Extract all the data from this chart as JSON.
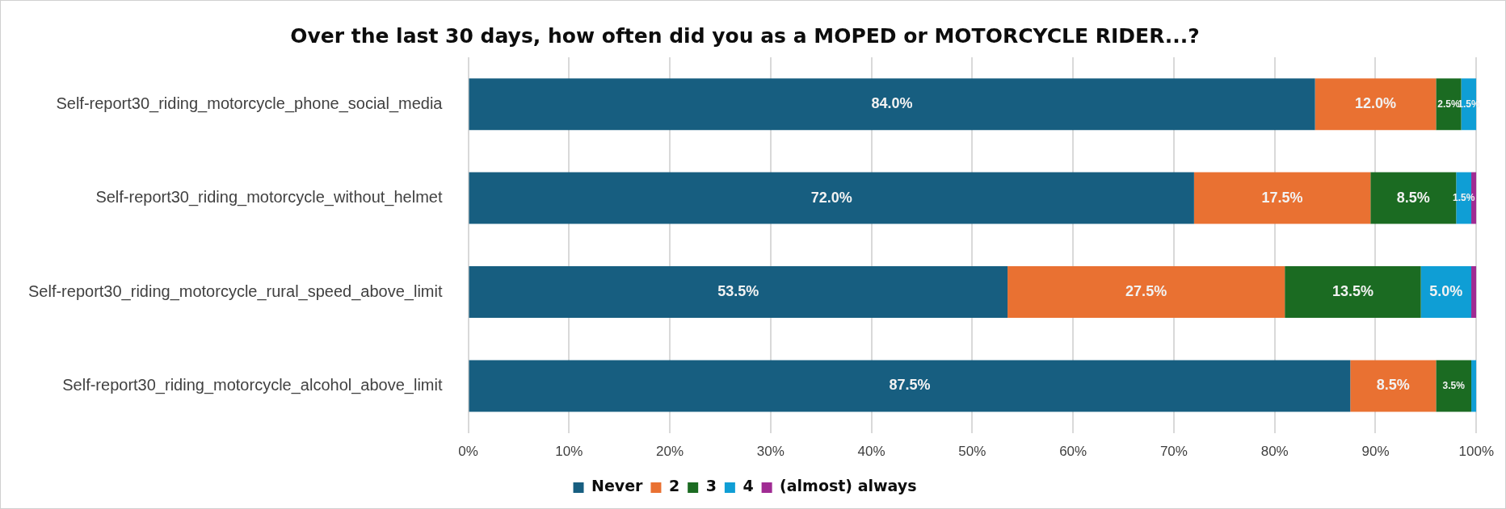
{
  "chart_data": {
    "type": "bar",
    "orientation": "horizontal",
    "stacked": true,
    "title": "Over the last 30 days, how often did you as a MOPED or MOTORCYCLE RIDER...?",
    "categories": [
      "Self-report30_riding_motorcycle_phone_social_media",
      "Self-report30_riding_motorcycle_without_helmet",
      "Self-report30_riding_motorcycle_rural_speed_above_limit",
      "Self-report30_riding_motorcycle_alcohol_above_limit"
    ],
    "series": [
      {
        "name": "Never",
        "color": "#175e80",
        "values": [
          84.0,
          72.0,
          53.5,
          87.5
        ],
        "value_labels": [
          "84.0%",
          "72.0%",
          "53.5%",
          "87.5%"
        ]
      },
      {
        "name": "2",
        "color": "#e97132",
        "values": [
          12.0,
          17.5,
          27.5,
          8.5
        ],
        "value_labels": [
          "12.0%",
          "17.5%",
          "27.5%",
          "8.5%"
        ]
      },
      {
        "name": "3",
        "color": "#1b6b22",
        "values": [
          2.5,
          8.5,
          13.5,
          3.5
        ],
        "value_labels": [
          "2.5%",
          "8.5%",
          "13.5%",
          "3.5%"
        ]
      },
      {
        "name": "4",
        "color": "#0f9ed5",
        "values": [
          1.5,
          1.5,
          5.0,
          0.5
        ],
        "value_labels": [
          "1.5%",
          "1.5%",
          "5.0%",
          null
        ]
      },
      {
        "name": "(almost) always",
        "color": "#a02b93",
        "values": [
          null,
          0.5,
          0.5,
          null
        ],
        "value_labels": [
          null,
          null,
          null,
          null
        ]
      }
    ],
    "xlim": [
      0,
      100
    ],
    "xticks": [
      {
        "value": 0,
        "label": "0%"
      },
      {
        "value": 10,
        "label": "10%"
      },
      {
        "value": 20,
        "label": "20%"
      },
      {
        "value": 30,
        "label": "30%"
      },
      {
        "value": 40,
        "label": "40%"
      },
      {
        "value": 50,
        "label": "50%"
      },
      {
        "value": 60,
        "label": "60%"
      },
      {
        "value": 70,
        "label": "70%"
      },
      {
        "value": 80,
        "label": "80%"
      },
      {
        "value": 90,
        "label": "90%"
      },
      {
        "value": 100,
        "label": "100%"
      }
    ],
    "grid": "x",
    "legend": "bottom"
  }
}
